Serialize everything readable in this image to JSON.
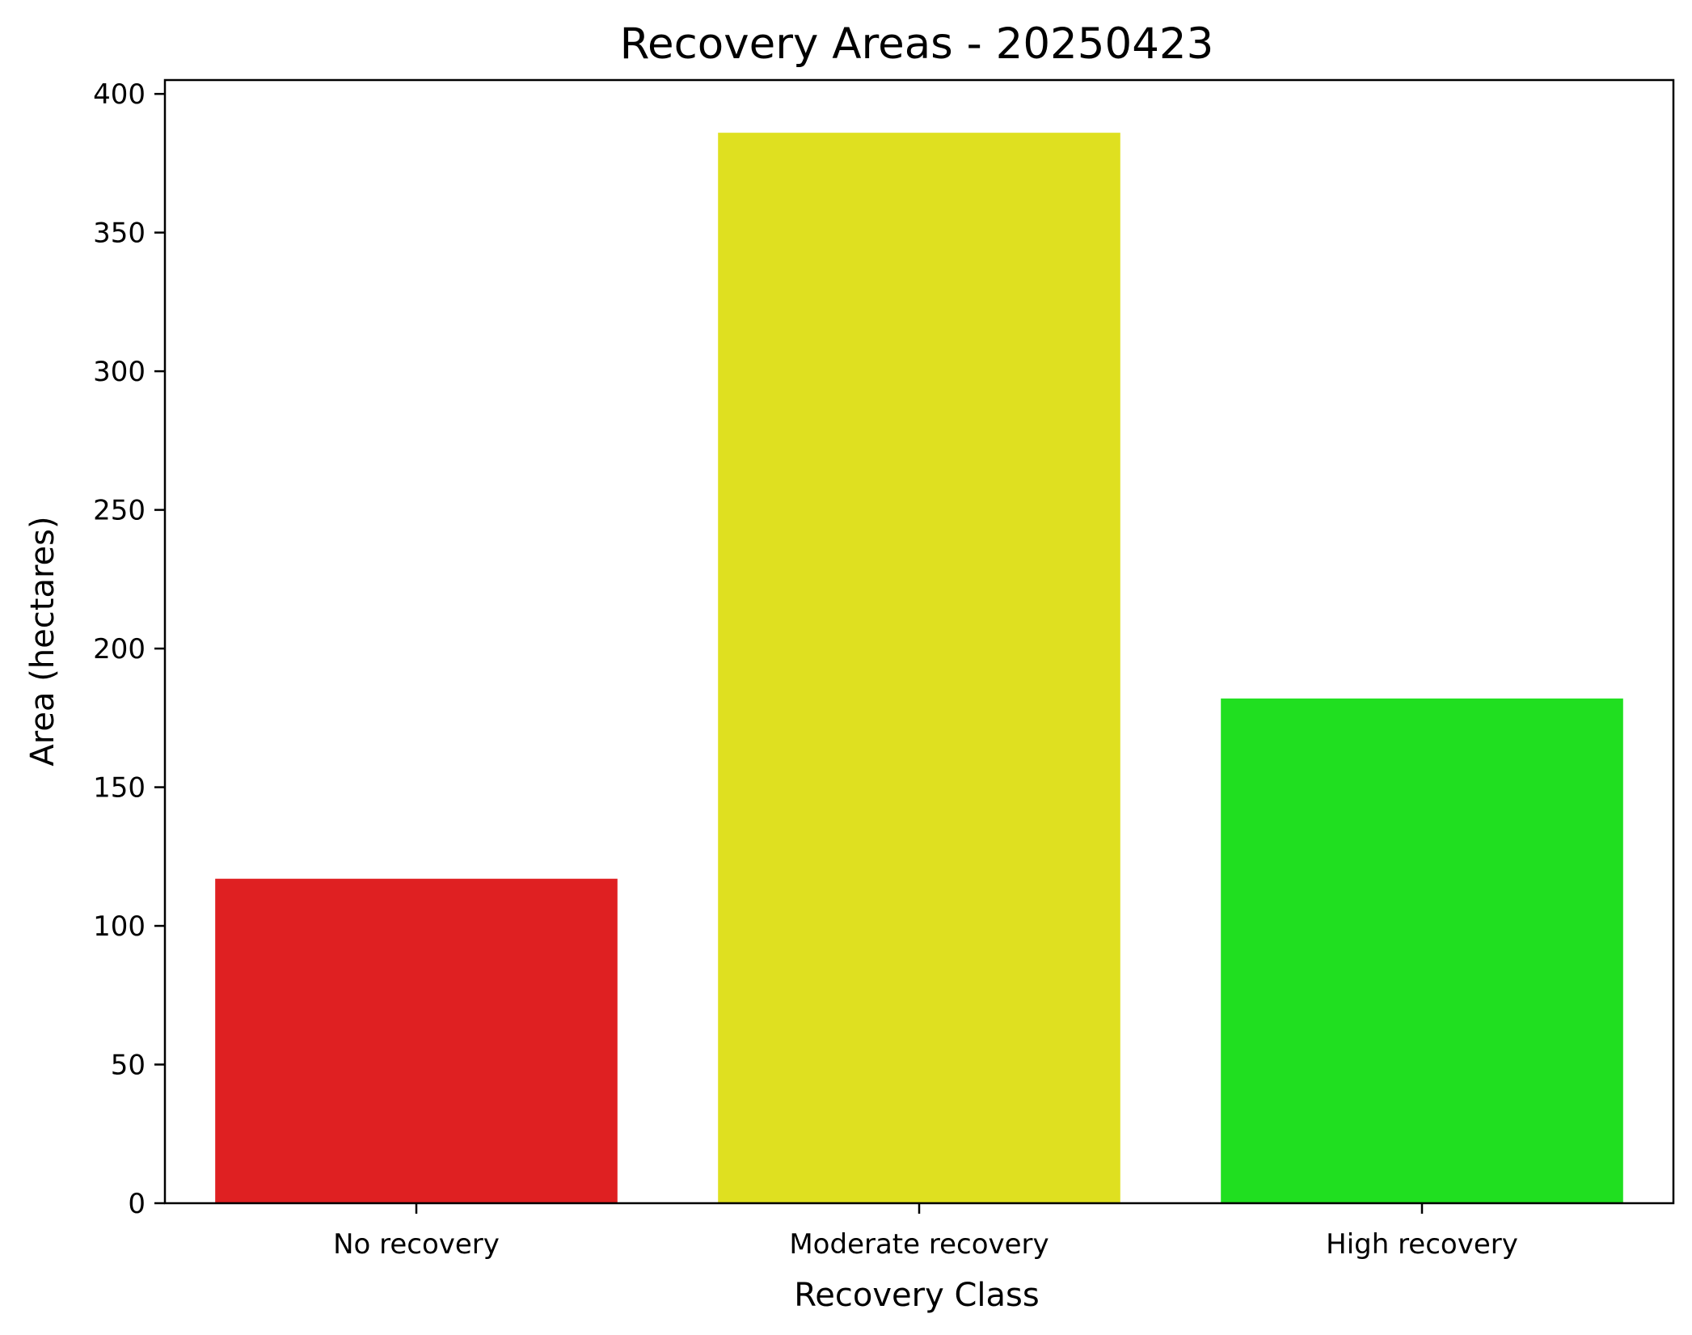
{
  "chart_data": {
    "type": "bar",
    "title": "Recovery Areas - 20250423",
    "xlabel": "Recovery Class",
    "ylabel": "Area (hectares)",
    "categories": [
      "No recovery",
      "Moderate recovery",
      "High recovery"
    ],
    "values": [
      117,
      386,
      182
    ],
    "colors": [
      "#df2022",
      "#dfe020",
      "#20df20"
    ],
    "ylim": [
      0,
      405
    ],
    "yticks": [
      0,
      50,
      100,
      150,
      200,
      250,
      300,
      350,
      400
    ],
    "grid": false,
    "legend": "none"
  }
}
